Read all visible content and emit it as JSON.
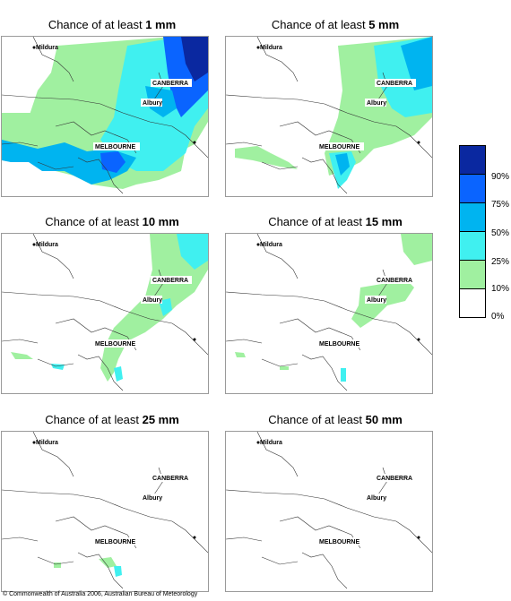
{
  "title_prefix": "Chance of at least ",
  "panels": [
    {
      "amount": "1 mm",
      "cities": {
        "mildura": "Mildura",
        "canberra": "CANBERRA",
        "albury": "Albury",
        "melbourne": "MELBOURNE"
      }
    },
    {
      "amount": "5 mm",
      "cities": {
        "mildura": "Mildura",
        "canberra": "CANBERRA",
        "albury": "Albury",
        "melbourne": "MELBOURNE"
      }
    },
    {
      "amount": "10 mm",
      "cities": {
        "mildura": "Mildura",
        "canberra": "CANBERRA",
        "albury": "Albury",
        "melbourne": "MELBOURNE"
      }
    },
    {
      "amount": "15 mm",
      "cities": {
        "mildura": "Mildura",
        "canberra": "CANBERRA",
        "albury": "Albury",
        "melbourne": "MELBOURNE"
      }
    },
    {
      "amount": "25 mm",
      "cities": {
        "mildura": "Mildura",
        "canberra": "CANBERRA",
        "albury": "Albury",
        "melbourne": "MELBOURNE"
      }
    },
    {
      "amount": "50 mm",
      "cities": {
        "mildura": "Mildura",
        "canberra": "CANBERRA",
        "albury": "Albury",
        "melbourne": "MELBOURNE"
      }
    }
  ],
  "legend": {
    "labels": [
      "90%",
      "75%",
      "50%",
      "25%",
      "10%",
      "0%"
    ],
    "colors": [
      "#0a28a0",
      "#0a64ff",
      "#00b4f0",
      "#40f0f0",
      "#a0f0a0",
      "#ffffff"
    ]
  },
  "copyright": "© Commonwealth of Australia 2006, Australian Bureau of Meteorology"
}
